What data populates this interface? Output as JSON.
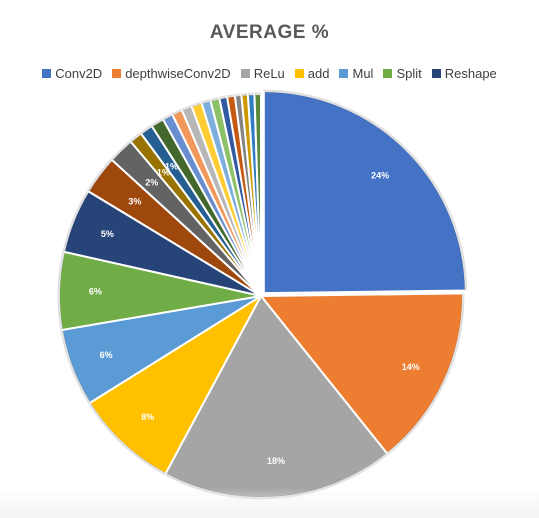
{
  "chart_data": {
    "type": "pie",
    "title": "AVERAGE %",
    "legend_position": "top",
    "slices": [
      {
        "name": "Conv2D",
        "value": 24,
        "label": "24%",
        "color": "#4472C4"
      },
      {
        "name": "depthwiseConv2D",
        "value": 14,
        "label": "14%",
        "color": "#ED7D31"
      },
      {
        "name": "ReLu",
        "value": 18,
        "label": "18%",
        "color": "#A5A5A5"
      },
      {
        "name": "add",
        "value": 8,
        "label": "8%",
        "color": "#FFC000"
      },
      {
        "name": "Mul",
        "value": 6,
        "label": "6%",
        "color": "#5B9BD5"
      },
      {
        "name": "Split",
        "value": 6,
        "label": "6%",
        "color": "#70AD47"
      },
      {
        "name": "Reshape",
        "value": 5,
        "label": "5%",
        "color": "#264478"
      },
      {
        "name": "",
        "value": 3,
        "label": "3%",
        "color": "#9E480E"
      },
      {
        "name": "",
        "value": 2,
        "label": "2%",
        "color": "#636363"
      },
      {
        "name": "",
        "value": 1,
        "label": "1%",
        "color": "#997300"
      },
      {
        "name": "",
        "value": 1,
        "label": "1%",
        "color": "#255E91"
      },
      {
        "name": "",
        "value": 1,
        "label": "",
        "color": "#43682B"
      },
      {
        "name": "",
        "value": 0.8,
        "label": "",
        "color": "#698ED0"
      },
      {
        "name": "",
        "value": 0.8,
        "label": "",
        "color": "#F1975A"
      },
      {
        "name": "",
        "value": 0.8,
        "label": "",
        "color": "#B7B7B7"
      },
      {
        "name": "",
        "value": 0.8,
        "label": "",
        "color": "#FFCD33"
      },
      {
        "name": "",
        "value": 0.7,
        "label": "",
        "color": "#7CAFDD"
      },
      {
        "name": "",
        "value": 0.7,
        "label": "",
        "color": "#8CC168"
      },
      {
        "name": "",
        "value": 0.6,
        "label": "",
        "color": "#335AA1"
      },
      {
        "name": "",
        "value": 0.6,
        "label": "",
        "color": "#C65911"
      },
      {
        "name": "",
        "value": 0.5,
        "label": "",
        "color": "#848484"
      },
      {
        "name": "",
        "value": 0.5,
        "label": "",
        "color": "#CC9A00"
      },
      {
        "name": "",
        "value": 0.5,
        "label": "",
        "color": "#327DC2"
      },
      {
        "name": "",
        "value": 0.5,
        "label": "",
        "color": "#5A8A39"
      }
    ]
  }
}
